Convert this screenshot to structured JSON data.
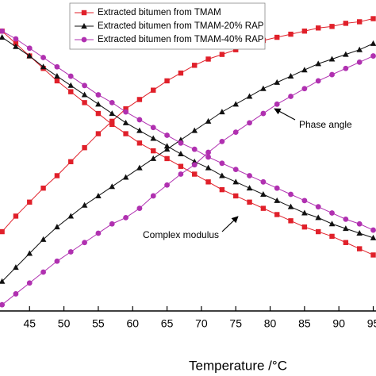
{
  "chart_data": {
    "type": "line",
    "x_label": "Temperature /°C",
    "xlim": [
      40.7,
      95.4
    ],
    "xticks": [
      45,
      50,
      55,
      60,
      65,
      70,
      75,
      80,
      85,
      90,
      95
    ],
    "ylim": [
      0,
      100
    ],
    "x": [
      41,
      43,
      45,
      47,
      49,
      51,
      53,
      55,
      57,
      59,
      61,
      63,
      65,
      67,
      69,
      71,
      73,
      75,
      77,
      79,
      81,
      83,
      85,
      87,
      89,
      91,
      93,
      95
    ],
    "series": [
      {
        "name": "Extracted bitumen from TMAM",
        "color": "#e0202a",
        "marker": "square",
        "values": [
          90,
          86,
          82,
          78,
          74,
          70.5,
          67,
          63.5,
          60,
          57,
          54,
          51.5,
          49,
          46.5,
          44,
          41.5,
          39,
          37,
          35,
          33,
          31,
          29,
          27,
          25.5,
          24,
          22,
          20,
          18
        ],
        "phase_values": [
          25.5,
          30.5,
          35,
          39.5,
          43.5,
          48,
          52.5,
          57,
          61,
          65,
          68,
          71,
          74,
          76.5,
          79,
          81,
          82.5,
          84,
          85.5,
          87,
          88,
          89,
          90,
          91,
          91.5,
          92.5,
          93,
          94
        ]
      },
      {
        "name": "Extracted bitumen from TMAM-20% RAP",
        "color": "#111111",
        "marker": "triangle",
        "values": [
          88,
          85,
          82,
          78.5,
          75.5,
          72.5,
          69.5,
          66.5,
          63.5,
          60.5,
          58,
          55.5,
          53,
          50.5,
          48,
          46,
          43.5,
          41.5,
          39.5,
          37.5,
          35.5,
          33.5,
          31.5,
          30,
          28,
          26.5,
          25,
          23.5
        ],
        "phase_values": [
          9.5,
          14,
          18.5,
          23,
          27,
          30.5,
          34,
          37,
          40,
          43,
          46,
          49,
          52,
          55,
          58,
          61,
          64,
          66.5,
          69,
          71.5,
          73.5,
          75.5,
          77.5,
          79.5,
          81,
          82.5,
          84,
          86
        ]
      },
      {
        "name": "Extracted bitumen from TMAM-40% RAP",
        "color": "#b030b0",
        "marker": "circle",
        "values": [
          90,
          87.5,
          84.5,
          81.5,
          78.5,
          75.5,
          72.5,
          69.5,
          67,
          64,
          61.5,
          59,
          56.5,
          54,
          52,
          49.5,
          47.5,
          45.5,
          43.5,
          41.5,
          39.5,
          37.5,
          35.5,
          33.5,
          31.5,
          29.5,
          28,
          26
        ],
        "phase_values": [
          2,
          5.5,
          9,
          12.5,
          16,
          19,
          22,
          25,
          28,
          30,
          33,
          37,
          40.5,
          44,
          47,
          51,
          54.5,
          57.5,
          60.5,
          63.5,
          66.5,
          69,
          71.5,
          74,
          76,
          78,
          80,
          82
        ]
      }
    ],
    "annotations": [
      "Phase angle",
      "Complex modulus"
    ]
  }
}
